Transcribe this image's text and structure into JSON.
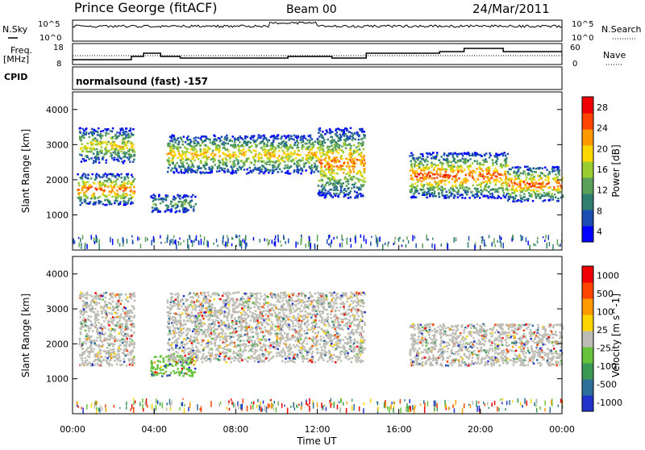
{
  "header": {
    "station": "Prince George (fitACF)",
    "beam": "Beam 00",
    "date": "24/Mar/2011"
  },
  "top_panels": {
    "nsky_label": "N.Sky",
    "nsky_tick_top": "10^5",
    "nsky_tick_bottom": "10^0",
    "nsearch_label": "N.Search",
    "nsearch_tick_top": "10^5",
    "nsearch_tick_bottom": "10^0",
    "freq_label": "Freq.",
    "freq_unit": "[MHz]",
    "freq_tick_top": "18",
    "freq_tick_bottom": "8",
    "nave_label": "Nave",
    "nave_tick_top": "60",
    "nave_tick_bottom": "0",
    "cpid_label": "CPID",
    "cpid_text": "normalsound (fast) -157"
  },
  "colors": {
    "power_scale": [
      "#0000ff",
      "#1c4db3",
      "#2f7f6f",
      "#5aa05a",
      "#9acd32",
      "#ffd700",
      "#ff9900",
      "#ff4400",
      "#ee0000"
    ],
    "velocity_scale": [
      "#2233cc",
      "#2d6e9a",
      "#3a9a55",
      "#66c23a",
      "#bdbdb5",
      "#ffd400",
      "#ff9900",
      "#ff4400",
      "#ee0000"
    ]
  },
  "chart_data": [
    {
      "type": "heatmap",
      "title": "",
      "xlabel": "Time UT",
      "ylabel": "Slant Range [km]",
      "xlim": [
        "00:00",
        "24:00"
      ],
      "ylim": [
        0,
        4500
      ],
      "x_tick_labels": [
        "00:00",
        "04:00",
        "08:00",
        "12:00",
        "16:00",
        "20:00",
        "00:00"
      ],
      "y_tick_labels": [
        "1000",
        "2000",
        "3000",
        "4000"
      ],
      "colorbar": {
        "label": "Power [dB]",
        "tick_labels": [
          "4",
          "8",
          "12",
          "16",
          "20",
          "24",
          "28"
        ],
        "range": [
          0,
          32
        ]
      },
      "regions": [
        {
          "t_start": 0.3,
          "t_end": 3.0,
          "range_low": 2500,
          "range_high": 3500,
          "peak_power": 20
        },
        {
          "t_start": 0.2,
          "t_end": 3.0,
          "range_low": 1300,
          "range_high": 2200,
          "peak_power": 28
        },
        {
          "t_start": 3.8,
          "t_end": 6.0,
          "range_low": 1100,
          "range_high": 1600,
          "peak_power": 12
        },
        {
          "t_start": 4.6,
          "t_end": 12.0,
          "range_low": 2200,
          "range_high": 3300,
          "peak_power": 22
        },
        {
          "t_start": 12.0,
          "t_end": 14.3,
          "range_low": 1500,
          "range_high": 3500,
          "peak_power": 26
        },
        {
          "t_start": 16.5,
          "t_end": 21.3,
          "range_low": 1500,
          "range_high": 2800,
          "peak_power": 28
        },
        {
          "t_start": 21.3,
          "t_end": 24.0,
          "range_low": 1400,
          "range_high": 2400,
          "peak_power": 28
        }
      ]
    },
    {
      "type": "heatmap",
      "title": "",
      "xlabel": "Time UT",
      "ylabel": "Slant Range [km]",
      "xlim": [
        "00:00",
        "24:00"
      ],
      "ylim": [
        0,
        4500
      ],
      "x_tick_labels": [
        "00:00",
        "04:00",
        "08:00",
        "12:00",
        "16:00",
        "20:00",
        "00:00"
      ],
      "y_tick_labels": [
        "1000",
        "2000",
        "3000",
        "4000"
      ],
      "colorbar": {
        "label": "Velocity [m s^-1]",
        "tick_labels": [
          "1000",
          "500",
          "100",
          "25",
          "-25",
          "-100",
          "-500",
          "-1000"
        ],
        "range": [
          -1000,
          1000
        ]
      },
      "regions": [
        {
          "t_start": 0.3,
          "t_end": 3.0,
          "range_low": 1400,
          "range_high": 3500,
          "velocity": 0
        },
        {
          "t_start": 3.8,
          "t_end": 6.0,
          "range_low": 1100,
          "range_high": 1700,
          "velocity": 100
        },
        {
          "t_start": 4.6,
          "t_end": 14.3,
          "range_low": 1500,
          "range_high": 3500,
          "velocity": 0
        },
        {
          "t_start": 16.5,
          "t_end": 24.0,
          "range_low": 1400,
          "range_high": 2600,
          "velocity": 0
        }
      ]
    }
  ]
}
